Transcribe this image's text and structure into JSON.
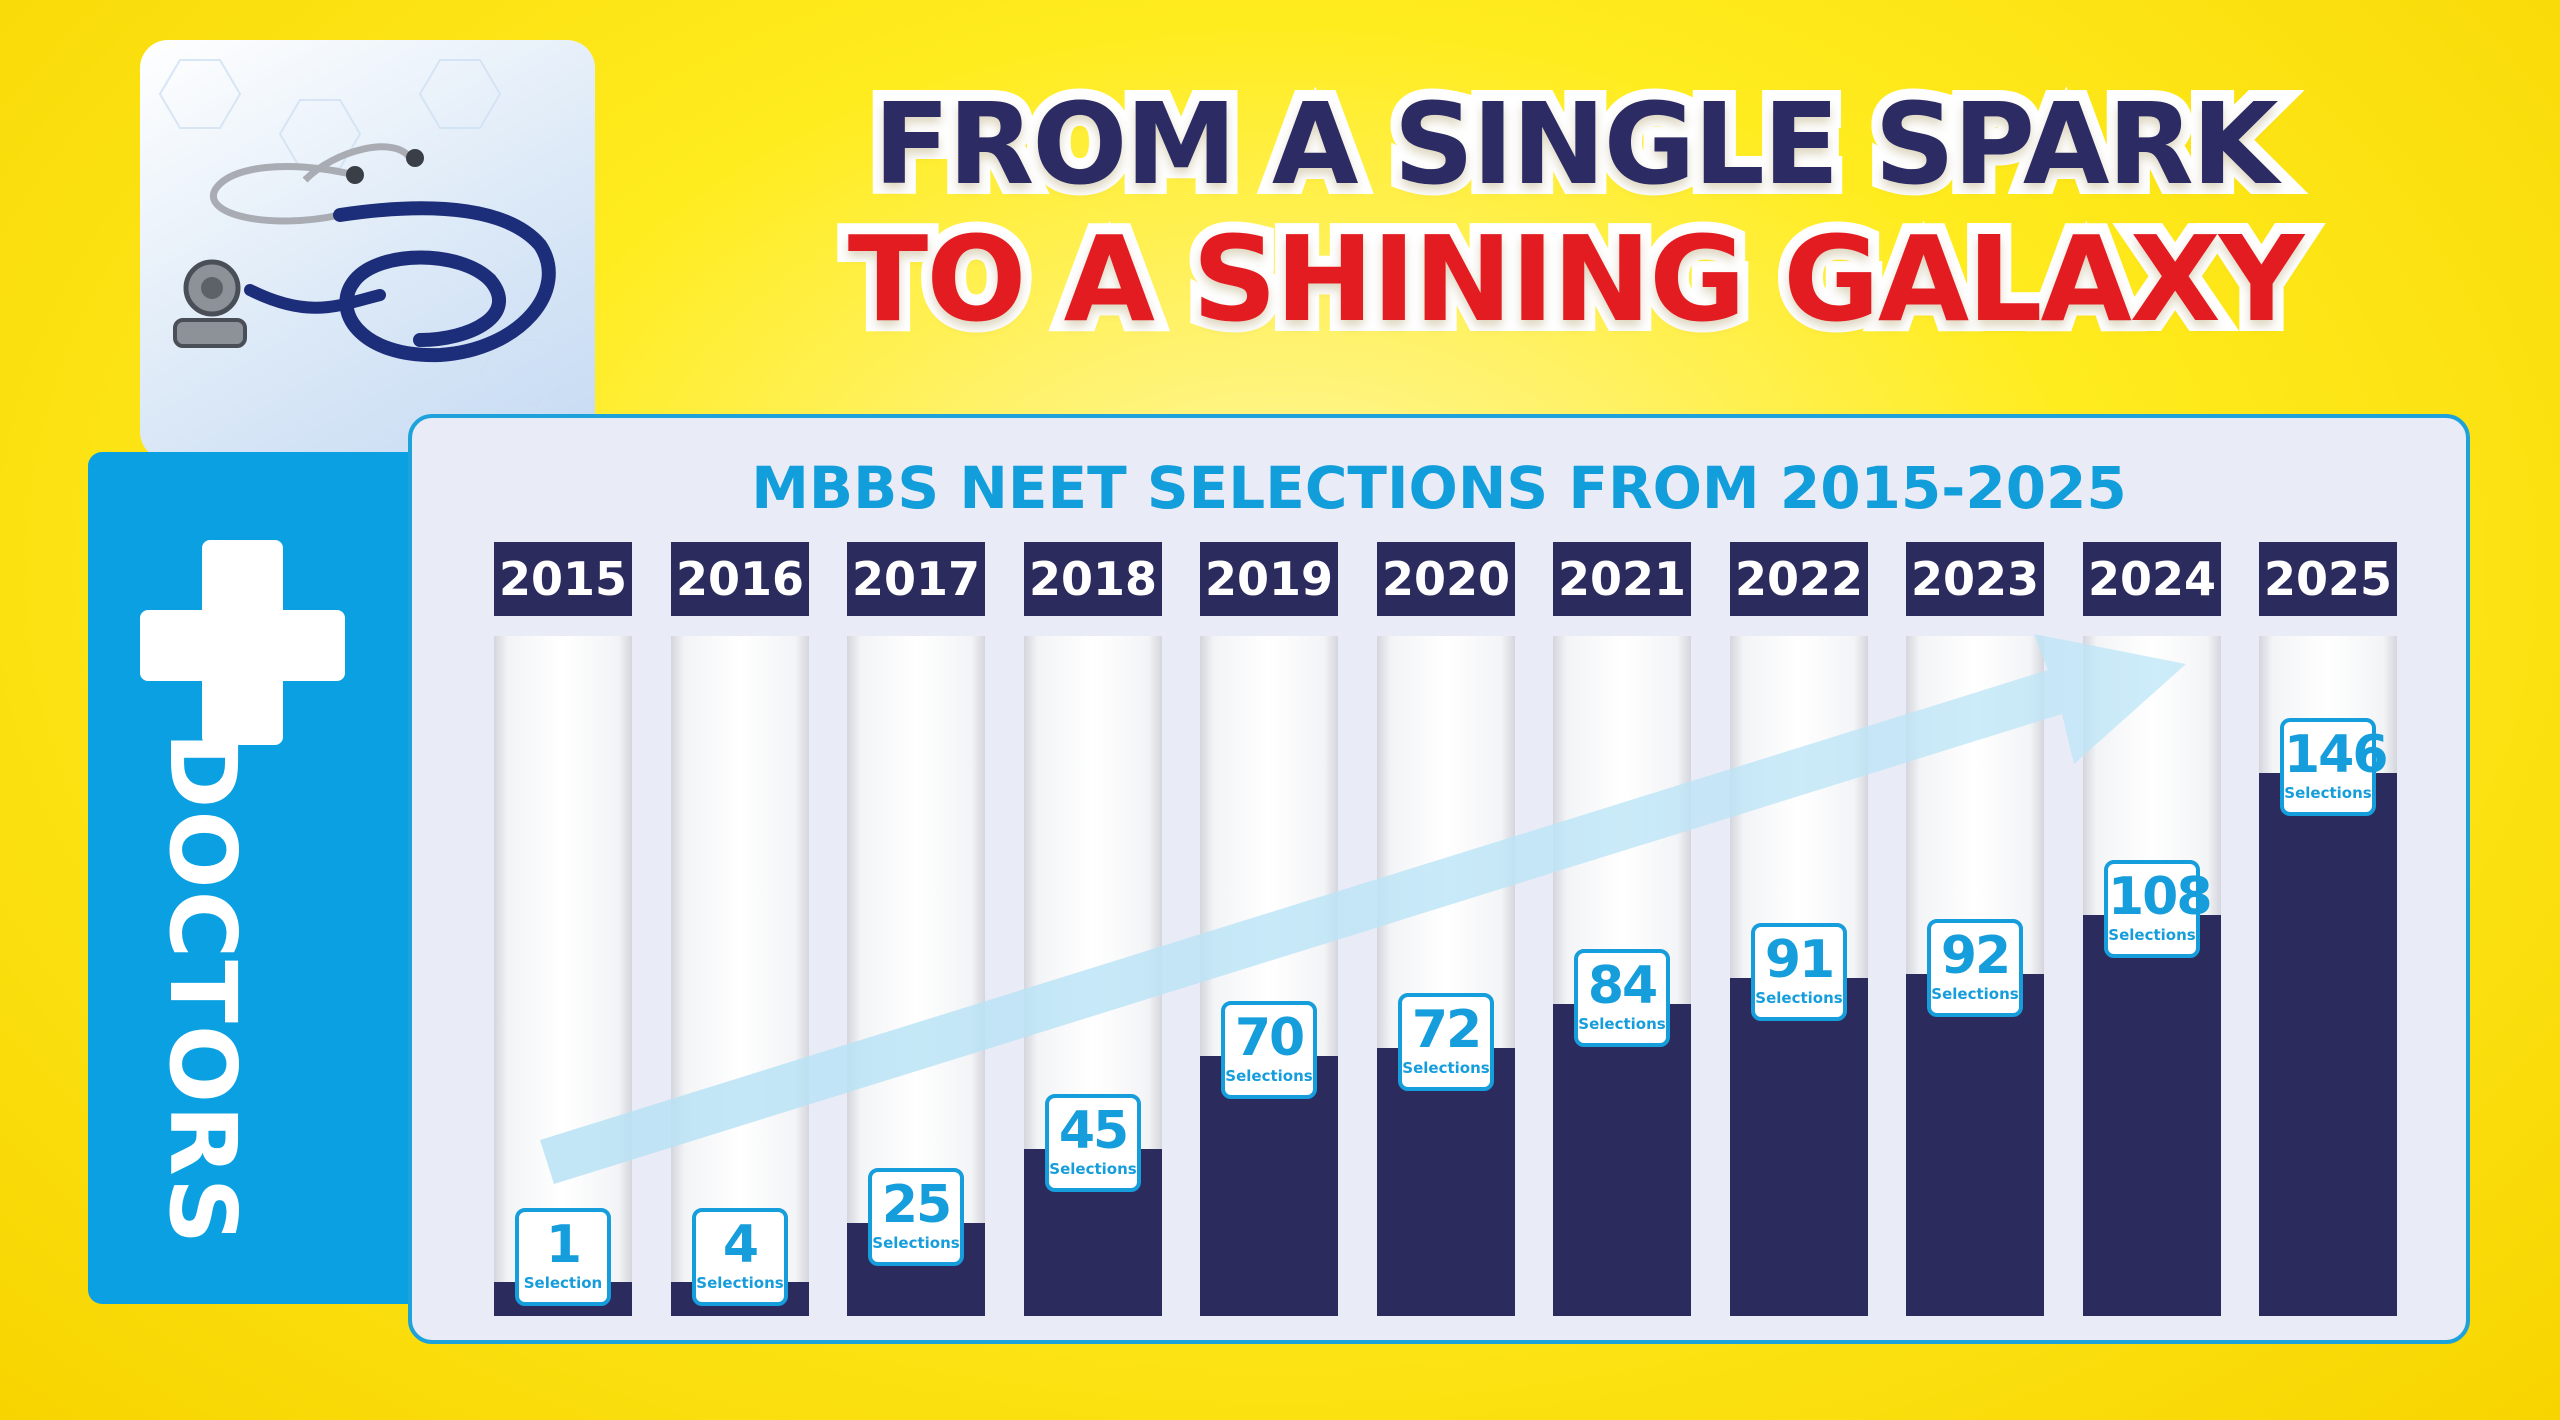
{
  "headline": {
    "line1": "FROM A SINGLE SPARK",
    "line2": "TO A SHINING GALAXY"
  },
  "side_tab": {
    "label": "DOCTORS",
    "icon": "plus-cross-icon"
  },
  "photo": {
    "icon": "stethoscope-icon"
  },
  "colors": {
    "background": "#ffec1f",
    "navy": "#2c2b5e",
    "accent_blue": "#129ddb",
    "red": "#e31c22"
  },
  "chart_data": {
    "type": "bar",
    "title": "MBBS NEET SELECTIONS FROM 2015-2025",
    "categories": [
      "2015",
      "2016",
      "2017",
      "2018",
      "2019",
      "2020",
      "2021",
      "2022",
      "2023",
      "2024",
      "2025"
    ],
    "values": [
      1,
      4,
      25,
      45,
      70,
      72,
      84,
      91,
      92,
      108,
      146
    ],
    "labels": [
      {
        "num": "1",
        "unit": "Selection"
      },
      {
        "num": "4",
        "unit": "Selections"
      },
      {
        "num": "25",
        "unit": "Selections"
      },
      {
        "num": "45",
        "unit": "Selections"
      },
      {
        "num": "70",
        "unit": "Selections"
      },
      {
        "num": "72",
        "unit": "Selections"
      },
      {
        "num": "84",
        "unit": "Selections"
      },
      {
        "num": "91",
        "unit": "Selections"
      },
      {
        "num": "92",
        "unit": "Selections"
      },
      {
        "num": "108",
        "unit": "Selections"
      },
      {
        "num": "146",
        "unit": "Selections"
      }
    ],
    "trend_arrow": "rising",
    "grid": false,
    "legend": "none"
  }
}
